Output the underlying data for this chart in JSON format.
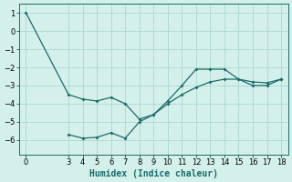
{
  "xlabel": "Humidex (Indice chaleur)",
  "bg_color": "#d4f0eb",
  "grid_color": "#aad8d0",
  "line_color": "#1a6b6b",
  "line1_x": [
    0,
    3,
    4,
    5,
    6,
    7,
    8,
    9,
    10,
    11,
    12,
    13,
    14,
    15,
    16,
    17,
    18
  ],
  "line1_y": [
    1.0,
    -3.5,
    -3.75,
    -3.85,
    -3.65,
    -4.0,
    -4.85,
    -4.6,
    -3.85,
    -3.0,
    -2.1,
    -2.1,
    -2.1,
    -2.65,
    -3.0,
    -3.0,
    -2.65
  ],
  "line2_x": [
    3,
    4,
    5,
    6,
    7,
    8,
    9,
    10,
    11,
    12,
    13,
    14,
    15,
    16,
    17,
    18
  ],
  "line2_y": [
    -5.7,
    -5.9,
    -5.85,
    -5.6,
    -5.9,
    -5.0,
    -4.6,
    -4.0,
    -3.5,
    -3.1,
    -2.8,
    -2.65,
    -2.65,
    -2.8,
    -2.85,
    -2.65
  ],
  "xlim": [
    -0.5,
    18.5
  ],
  "ylim": [
    -6.8,
    1.5
  ],
  "xticks": [
    0,
    3,
    4,
    5,
    6,
    7,
    8,
    9,
    10,
    11,
    12,
    13,
    14,
    15,
    16,
    17,
    18
  ],
  "yticks": [
    -6,
    -5,
    -4,
    -3,
    -2,
    -1,
    0,
    1
  ],
  "tick_fontsize": 6,
  "label_fontsize": 7
}
